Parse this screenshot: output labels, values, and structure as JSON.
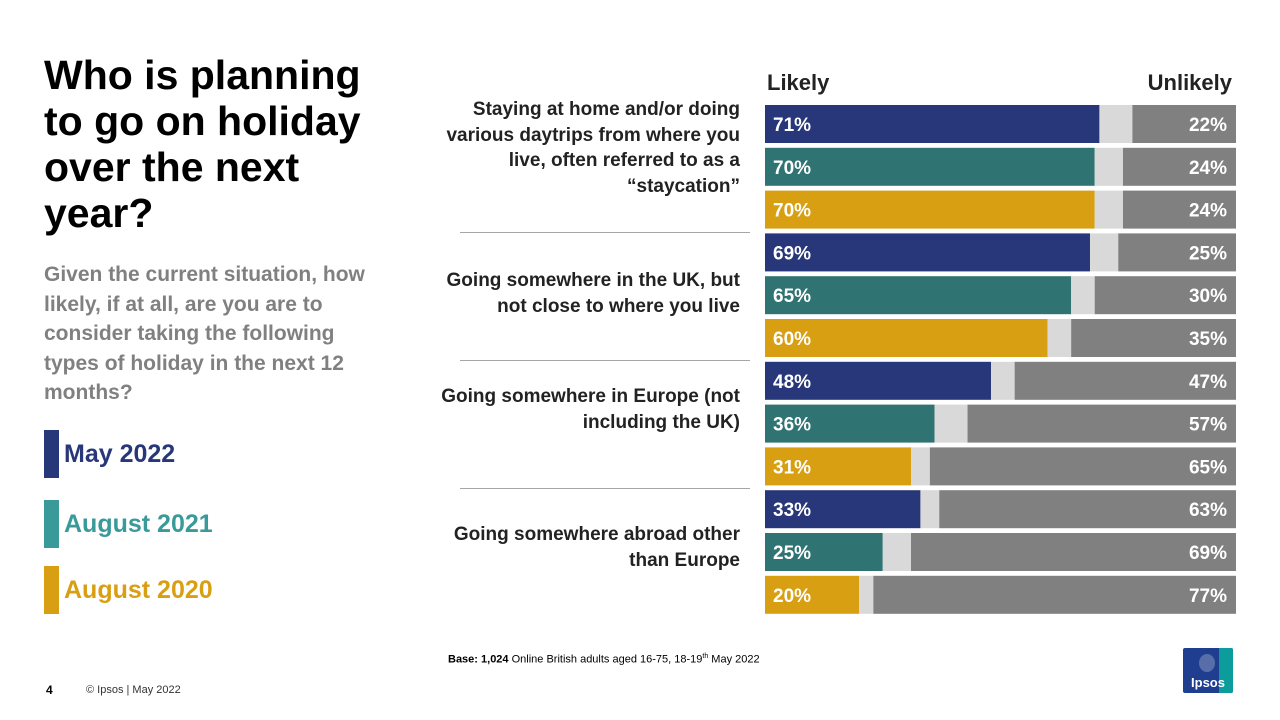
{
  "title": "Who is planning to go on holiday over the next year?",
  "subtitle": "Given the current situation, how likely, if at all, are you are to consider taking the following types of holiday in the next 12 months?",
  "legend": [
    {
      "label": "May 2022",
      "color": "#283779"
    },
    {
      "label": "August 2021",
      "color": "#3a9a9a"
    },
    {
      "label": "August 2020",
      "color": "#d99f12"
    }
  ],
  "footer": {
    "page_number": "4",
    "copyright": "© Ipsos | May 2022",
    "base_bold": "Base: 1,024",
    "base_text": " Online British adults aged 16-75, 18-19",
    "base_sup": "th",
    "base_tail": " May 2022",
    "logo_text": "Ipsos"
  },
  "chart_data": {
    "type": "bar",
    "orientation": "horizontal-stacked",
    "headers": {
      "likely": "Likely",
      "unlikely": "Unlikely"
    },
    "series_colors": {
      "May 2022": "#283779",
      "August 2021": "#307373",
      "August 2020": "#d99f12",
      "gap": "#d9d9d9",
      "unlikely": "#808080"
    },
    "groups": [
      {
        "label": "Staying at home and/or doing various daytrips from where you live, often referred to as a “staycation”",
        "rows": [
          {
            "series": "May 2022",
            "likely": 71,
            "unlikely": 22
          },
          {
            "series": "August 2021",
            "likely": 70,
            "unlikely": 24
          },
          {
            "series": "August 2020",
            "likely": 70,
            "unlikely": 24
          }
        ]
      },
      {
        "label": "Going somewhere in the UK, but not close to where you live",
        "rows": [
          {
            "series": "May 2022",
            "likely": 69,
            "unlikely": 25
          },
          {
            "series": "August 2021",
            "likely": 65,
            "unlikely": 30
          },
          {
            "series": "August 2020",
            "likely": 60,
            "unlikely": 35
          }
        ]
      },
      {
        "label": "Going somewhere in Europe (not including the UK)",
        "rows": [
          {
            "series": "May 2022",
            "likely": 48,
            "unlikely": 47
          },
          {
            "series": "August 2021",
            "likely": 36,
            "unlikely": 57
          },
          {
            "series": "August 2020",
            "likely": 31,
            "unlikely": 65
          }
        ]
      },
      {
        "label": "Going somewhere abroad other than Europe",
        "rows": [
          {
            "series": "May 2022",
            "likely": 33,
            "unlikely": 63
          },
          {
            "series": "August 2021",
            "likely": 25,
            "unlikely": 69
          },
          {
            "series": "August 2020",
            "likely": 20,
            "unlikely": 77
          }
        ]
      }
    ]
  }
}
